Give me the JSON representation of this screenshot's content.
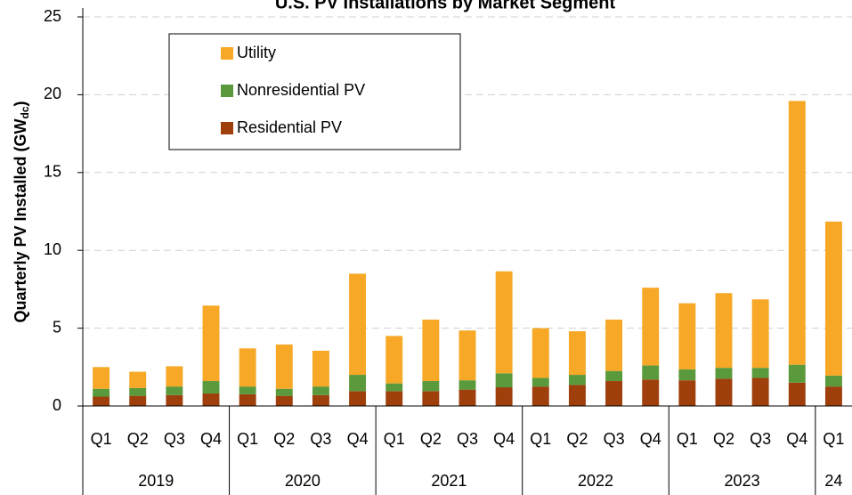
{
  "chart_data": {
    "type": "stacked_bar",
    "title": "U.S. PV Installations by Market Segment",
    "y_label": "Quarterly PV Installed (GW",
    "y_label_sub": "dc",
    "y_label_end": ")",
    "categories": [
      "Q1",
      "Q2",
      "Q3",
      "Q4",
      "Q1",
      "Q2",
      "Q3",
      "Q4",
      "Q1",
      "Q2",
      "Q3",
      "Q4",
      "Q1",
      "Q2",
      "Q3",
      "Q4",
      "Q1",
      "Q2",
      "Q3",
      "Q4",
      "Q1"
    ],
    "groups": [
      {
        "label": "2019",
        "count": 4
      },
      {
        "label": "2020",
        "count": 4
      },
      {
        "label": "2021",
        "count": 4
      },
      {
        "label": "2022",
        "count": 4
      },
      {
        "label": "2023",
        "count": 4
      },
      {
        "label": "24",
        "count": 1
      }
    ],
    "series": [
      {
        "name": "Residential PV",
        "color": "#9e3f0c",
        "values": [
          0.6,
          0.65,
          0.7,
          0.8,
          0.75,
          0.65,
          0.7,
          0.95,
          0.95,
          0.95,
          1.05,
          1.2,
          1.25,
          1.35,
          1.6,
          1.7,
          1.65,
          1.75,
          1.8,
          1.5,
          1.25
        ]
      },
      {
        "name": "Nonresidential PV",
        "color": "#5b9a3c",
        "values": [
          0.5,
          0.5,
          0.55,
          0.8,
          0.5,
          0.45,
          0.55,
          1.05,
          0.5,
          0.65,
          0.6,
          0.9,
          0.55,
          0.65,
          0.65,
          0.9,
          0.7,
          0.7,
          0.65,
          1.15,
          0.7
        ]
      },
      {
        "name": "Utility",
        "color": "#f6a826",
        "values": [
          1.4,
          1.05,
          1.3,
          4.85,
          2.45,
          2.85,
          2.3,
          6.5,
          3.05,
          3.95,
          3.2,
          6.55,
          3.2,
          2.8,
          3.3,
          5.0,
          4.25,
          4.8,
          4.4,
          16.95,
          9.9
        ]
      }
    ],
    "ylim": [
      0,
      25
    ],
    "yticks": [
      0,
      5,
      10,
      15,
      20,
      25
    ],
    "grid": true,
    "legend": "top-left"
  }
}
